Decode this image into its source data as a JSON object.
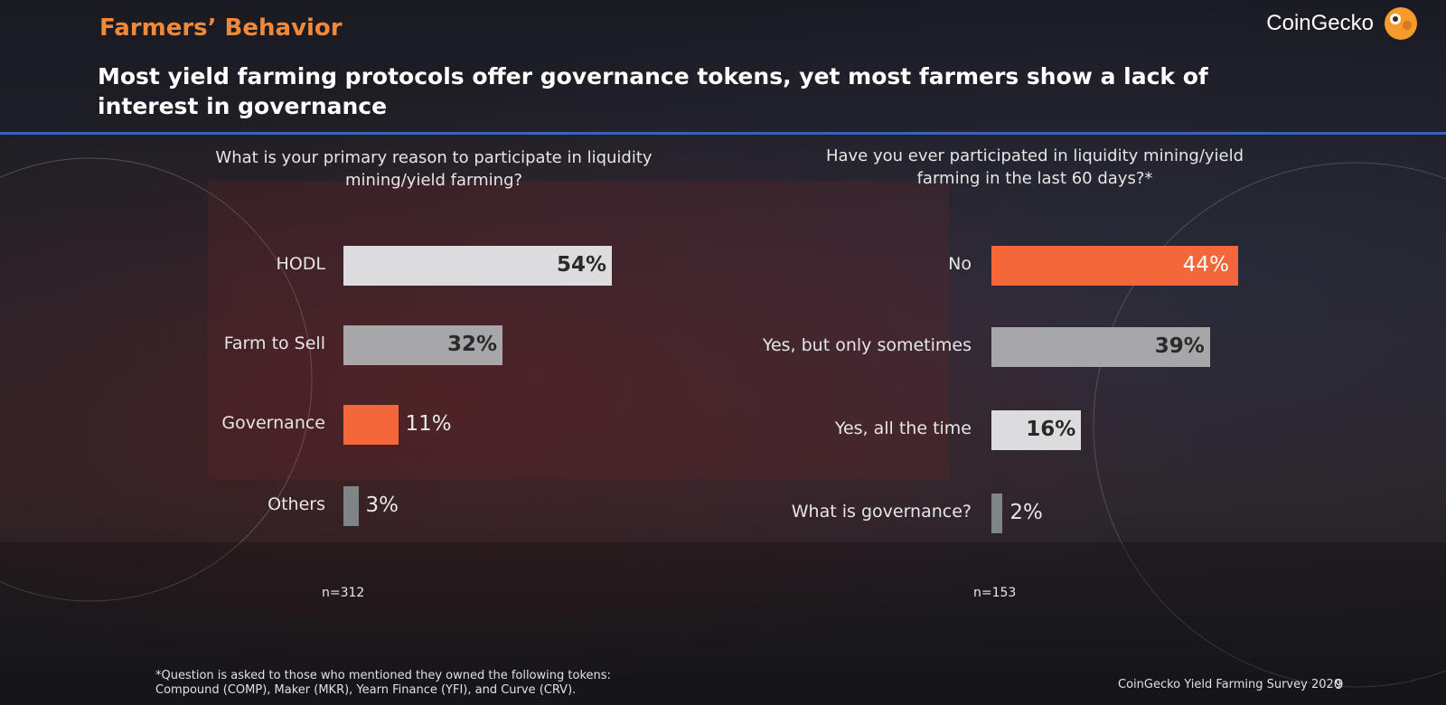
{
  "header": {
    "section_label": "Farmers’ Behavior",
    "brand": "CoinGecko",
    "headline": "Most yield farming protocols offer governance tokens, yet most farmers show a lack of interest in governance"
  },
  "colors": {
    "light_bar": "#dcdcde",
    "gray_bar": "#a7a7aa",
    "orange_bar": "#f4673a",
    "slate_bar": "#7f8487",
    "accent_line": "#3c5fc4",
    "section_label": "#f2893a"
  },
  "chart_data": [
    {
      "type": "bar",
      "orientation": "horizontal",
      "title": "What is your primary reason to participate in liquidity mining/yield farming?",
      "categories": [
        "HODL",
        "Farm to Sell",
        "Governance",
        "Others"
      ],
      "values": [
        54,
        32,
        11,
        3
      ],
      "value_labels": [
        "54%",
        "32%",
        "11%",
        "3%"
      ],
      "bar_colors": [
        "#dcdcde",
        "#a7a7aa",
        "#f4673a",
        "#7f8487"
      ],
      "sample_size": "n=312"
    },
    {
      "type": "bar",
      "orientation": "horizontal",
      "title": "Have you ever participated in liquidity mining/yield farming in the last 60 days?*",
      "categories": [
        "No",
        "Yes, but only sometimes",
        "Yes, all the time",
        "What is governance?"
      ],
      "values": [
        44,
        39,
        16,
        2
      ],
      "value_labels": [
        "44%",
        "39%",
        "16%",
        "2%"
      ],
      "bar_colors": [
        "#f4673a",
        "#a7a7aa",
        "#dcdcde",
        "#7f8487"
      ],
      "sample_size": "n=153"
    }
  ],
  "footer": {
    "footnote_line1": "*Question is asked to those who mentioned they owned the following tokens:",
    "footnote_line2": "Compound (COMP), Maker (MKR), Yearn Finance (YFI), and Curve (CRV).",
    "source": "CoinGecko Yield Farming Survey 2020",
    "page_number": "9"
  }
}
